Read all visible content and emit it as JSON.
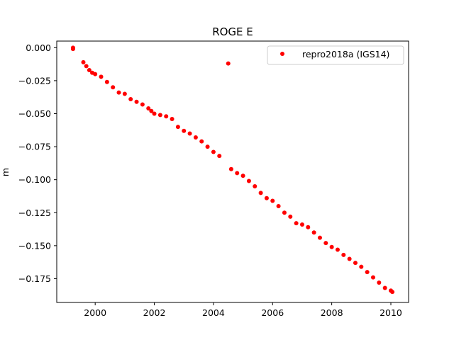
{
  "chart_data": {
    "type": "scatter",
    "title": "ROGE E",
    "xlabel": "",
    "ylabel": "m",
    "xlim": [
      1998.7,
      2010.6
    ],
    "ylim": [
      -0.193,
      0.005
    ],
    "x_ticks": [
      2000,
      2002,
      2004,
      2006,
      2008,
      2010
    ],
    "x_tick_labels": [
      "2000",
      "2002",
      "2004",
      "2006",
      "2008",
      "2010"
    ],
    "y_ticks": [
      0.0,
      -0.025,
      -0.05,
      -0.075,
      -0.1,
      -0.125,
      -0.15,
      -0.175
    ],
    "y_tick_labels": [
      "0.000",
      "−0.025",
      "−0.050",
      "−0.075",
      "−0.100",
      "−0.125",
      "−0.150",
      "−0.175"
    ],
    "grid": false,
    "legend_position": "upper right",
    "colors": {
      "series": "#ff0000"
    },
    "series": [
      {
        "name": "repro2018a (IGS14)",
        "marker": "circle",
        "color": "#ff0000",
        "points": [
          [
            1999.25,
            -0.001
          ],
          [
            1999.25,
            0.0
          ],
          [
            1999.6,
            -0.011
          ],
          [
            1999.7,
            -0.014
          ],
          [
            1999.8,
            -0.017
          ],
          [
            1999.9,
            -0.019
          ],
          [
            2000.0,
            -0.02
          ],
          [
            2000.2,
            -0.022
          ],
          [
            2000.4,
            -0.026
          ],
          [
            2000.6,
            -0.03
          ],
          [
            2000.8,
            -0.034
          ],
          [
            2001.0,
            -0.035
          ],
          [
            2001.2,
            -0.039
          ],
          [
            2001.4,
            -0.041
          ],
          [
            2001.6,
            -0.043
          ],
          [
            2001.8,
            -0.046
          ],
          [
            2001.9,
            -0.048
          ],
          [
            2002.0,
            -0.05
          ],
          [
            2002.2,
            -0.051
          ],
          [
            2002.4,
            -0.052
          ],
          [
            2002.6,
            -0.054
          ],
          [
            2002.8,
            -0.06
          ],
          [
            2003.0,
            -0.063
          ],
          [
            2003.2,
            -0.065
          ],
          [
            2003.4,
            -0.068
          ],
          [
            2003.6,
            -0.071
          ],
          [
            2003.8,
            -0.075
          ],
          [
            2004.0,
            -0.079
          ],
          [
            2004.2,
            -0.082
          ],
          [
            2004.5,
            -0.012
          ],
          [
            2004.6,
            -0.092
          ],
          [
            2004.8,
            -0.095
          ],
          [
            2005.0,
            -0.097
          ],
          [
            2005.2,
            -0.101
          ],
          [
            2005.4,
            -0.105
          ],
          [
            2005.6,
            -0.11
          ],
          [
            2005.8,
            -0.114
          ],
          [
            2006.0,
            -0.116
          ],
          [
            2006.2,
            -0.12
          ],
          [
            2006.4,
            -0.125
          ],
          [
            2006.6,
            -0.128
          ],
          [
            2006.8,
            -0.133
          ],
          [
            2007.0,
            -0.134
          ],
          [
            2007.2,
            -0.136
          ],
          [
            2007.4,
            -0.14
          ],
          [
            2007.6,
            -0.144
          ],
          [
            2007.8,
            -0.148
          ],
          [
            2008.0,
            -0.151
          ],
          [
            2008.2,
            -0.153
          ],
          [
            2008.4,
            -0.157
          ],
          [
            2008.6,
            -0.16
          ],
          [
            2008.8,
            -0.163
          ],
          [
            2009.0,
            -0.166
          ],
          [
            2009.2,
            -0.17
          ],
          [
            2009.4,
            -0.174
          ],
          [
            2009.6,
            -0.178
          ],
          [
            2009.8,
            -0.182
          ],
          [
            2010.0,
            -0.184
          ],
          [
            2010.05,
            -0.185
          ]
        ]
      }
    ]
  }
}
